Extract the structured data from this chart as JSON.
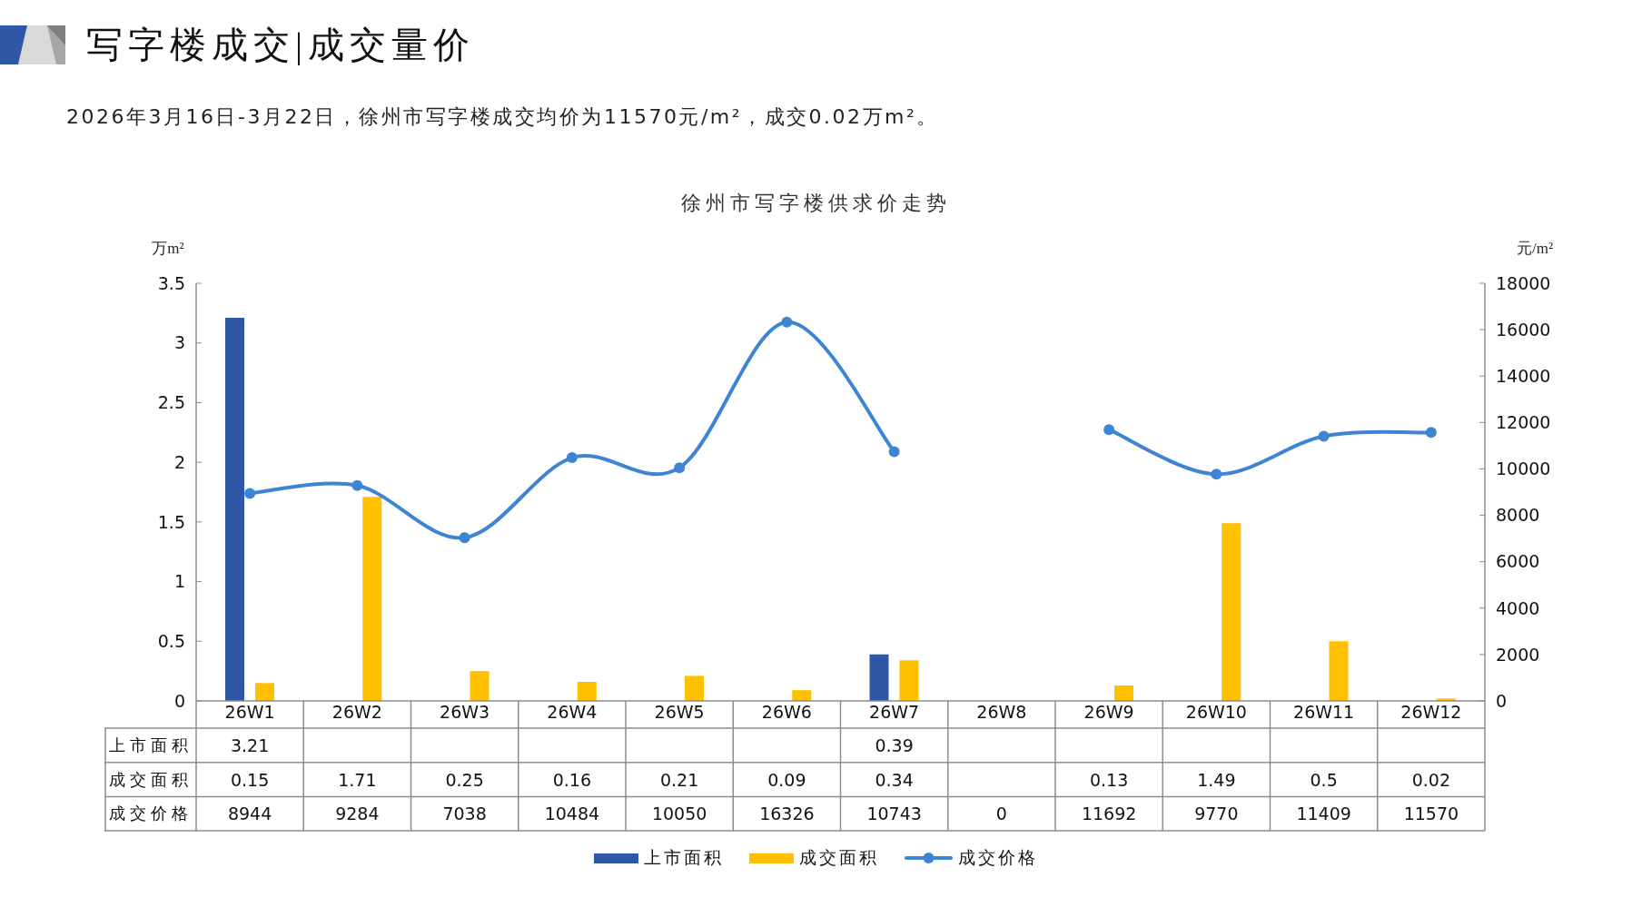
{
  "chart_data": {
    "type": "bar",
    "title": "徐州市写字楼供求价走势",
    "annotations": [
      "写字楼成交|成交量价",
      "2026年3月16日-3月22日，徐州市写字楼成交均价为11570元/m²，成交0.02万m²。"
    ],
    "ylabel": "万m²",
    "y2label": "元/m²",
    "categories": [
      "26W1",
      "26W2",
      "26W3",
      "26W4",
      "26W5",
      "26W6",
      "26W7",
      "26W8",
      "26W9",
      "26W10",
      "26W11",
      "26W12"
    ],
    "series": [
      {
        "name": "上市面积",
        "color": "#2e58a6",
        "values": [
          3.21,
          null,
          null,
          null,
          null,
          null,
          0.39,
          null,
          null,
          null,
          null,
          null
        ],
        "value_labels": [
          "3.21",
          null,
          null,
          null,
          null,
          null,
          "0.39",
          null,
          null,
          null,
          null,
          null
        ]
      },
      {
        "name": "成交面积",
        "color": "#ffc000",
        "values": [
          0.15,
          1.71,
          0.25,
          0.16,
          0.21,
          0.09,
          0.34,
          null,
          0.13,
          1.49,
          0.5,
          0.02
        ],
        "value_labels": [
          "0.15",
          "1.71",
          "0.25",
          "0.16",
          "0.21",
          "0.09",
          "0.34",
          null,
          "0.13",
          "1.49",
          "0.5",
          "0.02"
        ]
      },
      {
        "name": "成交价格",
        "type": "line",
        "axis": "y2",
        "color": "#3d85d4",
        "values": [
          8944,
          9284,
          7038,
          10484,
          10050,
          16326,
          10743,
          null,
          11692,
          9770,
          11409,
          11570
        ],
        "value_labels": [
          "8944",
          "9284",
          "7038",
          "10484",
          "10050",
          "16326",
          "10743",
          "0",
          "11692",
          "9770",
          "11409",
          "11570"
        ]
      }
    ],
    "ylim": [
      0,
      3.5
    ],
    "yticks": [
      0,
      0.5,
      1,
      1.5,
      2,
      2.5,
      3,
      3.5
    ],
    "y2lim": [
      0,
      18000
    ],
    "y2ticks": [
      0,
      2000,
      4000,
      6000,
      8000,
      10000,
      12000,
      14000,
      16000,
      18000
    ],
    "marker": "circle",
    "legend": "bottom"
  }
}
